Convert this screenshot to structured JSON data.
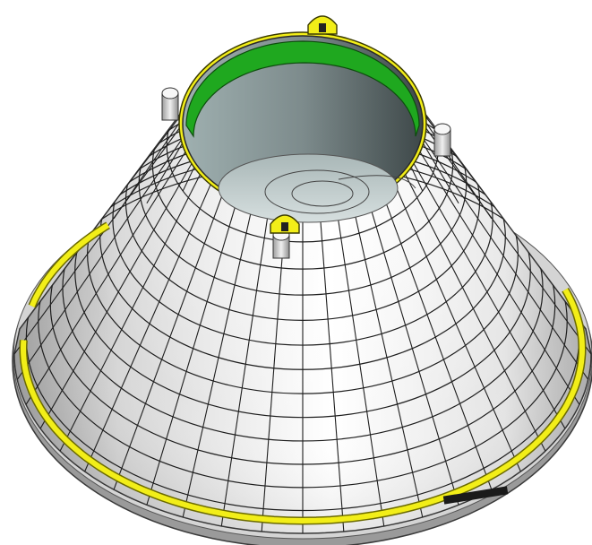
{
  "colors": {
    "background": "#ffffff",
    "shell_light": "#f4f4f4",
    "shell_mid": "#cfcfcf",
    "shell_dark": "#8c8c8c",
    "tile_line": "#1e1e1e",
    "yellow_trim": "#f2ee18",
    "yellow_edge": "#6b6a00",
    "green_band": "#1fa81f",
    "inner_dark": "#5d6a6b",
    "inner_mid": "#9aa6a6",
    "inner_light": "#c9d3d3",
    "post_fill": "#d9d9d9"
  },
  "model": {
    "subject": "conical-heat-shield",
    "radial_segments": 44,
    "ring_rows": 13,
    "attachment_posts": 4,
    "yellow_fittings": 2
  }
}
